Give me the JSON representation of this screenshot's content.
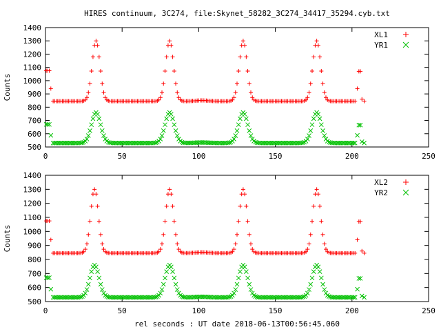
{
  "title": "HIRES continuum, 3C274, file:Skynet_58282_3C274_34417_35294.cyb.txt",
  "xlabel": "rel seconds : UT date 2018-06-13T00:56:45.060",
  "chart_data": [
    {
      "type": "scatter",
      "ylabel": "Counts",
      "xlim": [
        0,
        250
      ],
      "ylim": [
        500,
        1400
      ],
      "xticks": [
        0,
        50,
        100,
        150,
        200,
        250
      ],
      "yticks": [
        500,
        600,
        700,
        800,
        900,
        1000,
        1100,
        1200,
        1300,
        1400
      ],
      "grid": false,
      "legend_position": "top-right",
      "series": [
        {
          "name": "XL1",
          "marker": "plus",
          "color": "#ff0000",
          "baseline": 845,
          "peak": 1300,
          "peak_centers": [
            33,
            81,
            129,
            177
          ],
          "peak_width": 3.6,
          "start_points": [
            [
              0.5,
              1075
            ],
            [
              1.5,
              1075
            ],
            [
              2.5,
              1075
            ],
            [
              3.5,
              940
            ]
          ],
          "end_points": [
            [
              203.5,
              940
            ],
            [
              204.5,
              1070
            ],
            [
              205.5,
              1070
            ],
            [
              206.5,
              860
            ],
            [
              208,
              845
            ]
          ]
        },
        {
          "name": "YR1",
          "marker": "cross",
          "color": "#00c000",
          "baseline": 530,
          "peak": 760,
          "peak_centers": [
            33,
            81,
            129,
            177
          ],
          "peak_width": 4.2,
          "start_points": [
            [
              0.5,
              670
            ],
            [
              1.5,
              670
            ],
            [
              2.5,
              670
            ],
            [
              3.5,
              588
            ]
          ],
          "end_points": [
            [
              203.5,
              588
            ],
            [
              204.5,
              665
            ],
            [
              205.5,
              665
            ],
            [
              206.5,
              540
            ],
            [
              208,
              530
            ]
          ]
        }
      ]
    },
    {
      "type": "scatter",
      "ylabel": "Counts",
      "xlim": [
        0,
        250
      ],
      "ylim": [
        500,
        1400
      ],
      "xticks": [
        0,
        50,
        100,
        150,
        200,
        250
      ],
      "yticks": [
        500,
        600,
        700,
        800,
        900,
        1000,
        1100,
        1200,
        1300,
        1400
      ],
      "grid": false,
      "legend_position": "top-right",
      "series": [
        {
          "name": "XL2",
          "marker": "plus",
          "color": "#ff0000",
          "baseline": 845,
          "peak": 1300,
          "peak_centers": [
            32,
            81,
            129,
            177
          ],
          "peak_width": 3.6,
          "start_points": [
            [
              0.5,
              1075
            ],
            [
              1.5,
              1075
            ],
            [
              2.5,
              1075
            ],
            [
              3.5,
              940
            ]
          ],
          "end_points": [
            [
              203.5,
              940
            ],
            [
              204.5,
              1070
            ],
            [
              205.5,
              1070
            ],
            [
              206.5,
              860
            ],
            [
              208,
              845
            ]
          ]
        },
        {
          "name": "YR2",
          "marker": "cross",
          "color": "#00c000",
          "baseline": 530,
          "peak": 760,
          "peak_centers": [
            32,
            81,
            129,
            177
          ],
          "peak_width": 4.2,
          "start_points": [
            [
              0.5,
              670
            ],
            [
              1.5,
              670
            ],
            [
              2.5,
              670
            ],
            [
              3.5,
              588
            ]
          ],
          "end_points": [
            [
              203.5,
              588
            ],
            [
              204.5,
              665
            ],
            [
              205.5,
              665
            ],
            [
              206.5,
              540
            ],
            [
              208,
              530
            ]
          ]
        }
      ]
    }
  ]
}
